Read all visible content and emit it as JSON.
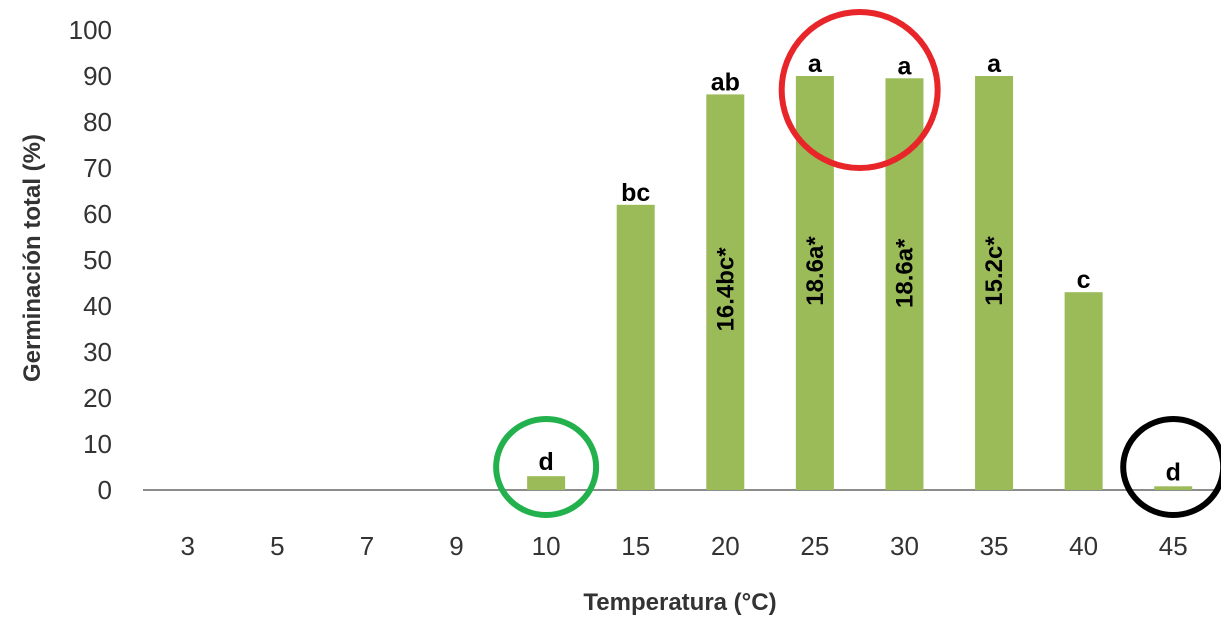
{
  "chart_data": {
    "type": "bar",
    "categories": [
      "3",
      "5",
      "7",
      "9",
      "10",
      "15",
      "20",
      "25",
      "30",
      "35",
      "40",
      "45"
    ],
    "values": [
      0,
      0,
      0,
      0,
      3,
      62,
      86,
      90,
      89.5,
      90,
      43,
      0.8
    ],
    "letters": [
      "",
      "",
      "",
      "",
      "d",
      "bc",
      "ab",
      "a",
      "a",
      "a",
      "c",
      "d"
    ],
    "inner_labels": [
      "",
      "",
      "",
      "",
      "",
      "",
      "16.4bc*",
      "18.6a*",
      "18.6a*",
      "15.2c*",
      "",
      ""
    ],
    "xlabel": "Temperatura (°C)",
    "ylabel": "Germinación total (%)",
    "ylim": [
      0,
      100
    ],
    "yticks": [
      0,
      10,
      20,
      30,
      40,
      50,
      60,
      70,
      80,
      90,
      100
    ],
    "grid": false,
    "colors": {
      "bar": "#9bbb59",
      "axis": "#8c8c8c",
      "circle_red": "#e8262a",
      "circle_green": "#22b14c",
      "circle_black": "#000000"
    },
    "highlights": [
      {
        "name": "red-circle",
        "categories": [
          "25",
          "30"
        ],
        "color": "#e8262a"
      },
      {
        "name": "green-circle",
        "categories": [
          "10"
        ],
        "color": "#22b14c"
      },
      {
        "name": "black-circle",
        "categories": [
          "45"
        ],
        "color": "#000000"
      }
    ]
  }
}
